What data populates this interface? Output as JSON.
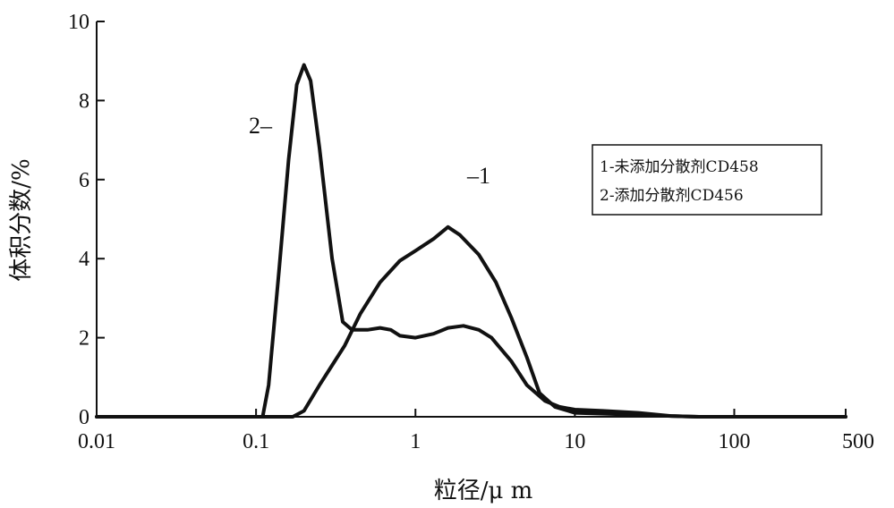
{
  "chart_data": {
    "type": "line",
    "x_scale": "log",
    "xlabel": "粒径/μ m",
    "ylabel": "体积分数/%",
    "xlim": [
      0.01,
      500
    ],
    "ylim": [
      0,
      10
    ],
    "x_ticks": [
      {
        "value": 0.01,
        "label": "0.01"
      },
      {
        "value": 0.1,
        "label": "0.1"
      },
      {
        "value": 1,
        "label": "1"
      },
      {
        "value": 10,
        "label": "10"
      },
      {
        "value": 100,
        "label": "100"
      },
      {
        "value": 500,
        "label": "500"
      }
    ],
    "y_ticks": [
      {
        "value": 0,
        "label": "0"
      },
      {
        "value": 2,
        "label": "2"
      },
      {
        "value": 4,
        "label": "4"
      },
      {
        "value": 6,
        "label": "6"
      },
      {
        "value": 8,
        "label": "8"
      },
      {
        "value": 10,
        "label": "10"
      }
    ],
    "legend": [
      "1-未添加分散剂CD458",
      "2-添加分散剂CD456"
    ],
    "legend_position": "right",
    "series": [
      {
        "name": "1",
        "label": "–1",
        "color": "#111111",
        "points": [
          [
            0.01,
            0
          ],
          [
            0.17,
            0
          ],
          [
            0.2,
            0.15
          ],
          [
            0.25,
            0.8
          ],
          [
            0.3,
            1.3
          ],
          [
            0.36,
            1.8
          ],
          [
            0.45,
            2.6
          ],
          [
            0.6,
            3.4
          ],
          [
            0.8,
            3.95
          ],
          [
            1.0,
            4.2
          ],
          [
            1.3,
            4.5
          ],
          [
            1.6,
            4.8
          ],
          [
            1.9,
            4.6
          ],
          [
            2.5,
            4.1
          ],
          [
            3.2,
            3.4
          ],
          [
            4.0,
            2.5
          ],
          [
            5.0,
            1.5
          ],
          [
            6.0,
            0.6
          ],
          [
            7.5,
            0.25
          ],
          [
            10,
            0.1
          ],
          [
            20,
            0.06
          ],
          [
            40,
            0.02
          ],
          [
            60,
            0
          ],
          [
            500,
            0
          ]
        ]
      },
      {
        "name": "2",
        "label": "2–",
        "color": "#111111",
        "points": [
          [
            0.01,
            0
          ],
          [
            0.11,
            0
          ],
          [
            0.12,
            0.8
          ],
          [
            0.14,
            3.8
          ],
          [
            0.16,
            6.5
          ],
          [
            0.18,
            8.4
          ],
          [
            0.2,
            8.9
          ],
          [
            0.22,
            8.5
          ],
          [
            0.25,
            6.8
          ],
          [
            0.3,
            4.0
          ],
          [
            0.35,
            2.4
          ],
          [
            0.4,
            2.2
          ],
          [
            0.5,
            2.2
          ],
          [
            0.6,
            2.25
          ],
          [
            0.7,
            2.2
          ],
          [
            0.8,
            2.05
          ],
          [
            1.0,
            2.0
          ],
          [
            1.3,
            2.1
          ],
          [
            1.6,
            2.25
          ],
          [
            2.0,
            2.3
          ],
          [
            2.5,
            2.2
          ],
          [
            3.0,
            2.0
          ],
          [
            4.0,
            1.4
          ],
          [
            5.0,
            0.8
          ],
          [
            6.5,
            0.4
          ],
          [
            8.0,
            0.25
          ],
          [
            10,
            0.18
          ],
          [
            15,
            0.15
          ],
          [
            25,
            0.1
          ],
          [
            40,
            0.02
          ],
          [
            60,
            0
          ],
          [
            500,
            0
          ]
        ]
      }
    ]
  }
}
